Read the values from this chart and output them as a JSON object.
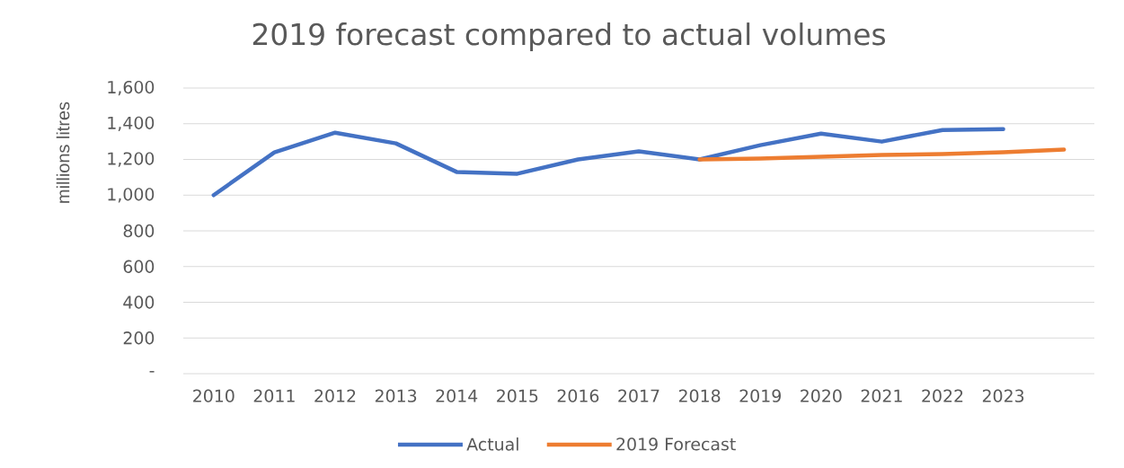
{
  "chart_data": {
    "type": "line",
    "title": "2019 forecast compared to actual volumes",
    "ylabel": "millions litres",
    "categories": [
      "2010",
      "2011",
      "2012",
      "2013",
      "2014",
      "2015",
      "2016",
      "2017",
      "2018",
      "2019",
      "2020",
      "2021",
      "2022",
      "2023",
      null
    ],
    "series": [
      {
        "name": "Actual",
        "color": "#4472c4",
        "values": [
          1000,
          1240,
          1350,
          1290,
          1130,
          1120,
          1200,
          1245,
          1200,
          1280,
          1345,
          1300,
          1365,
          1370,
          null
        ]
      },
      {
        "name": "2019 Forecast",
        "color": "#ed7d31",
        "values": [
          null,
          null,
          null,
          null,
          null,
          null,
          null,
          null,
          1200,
          1205,
          1215,
          1225,
          1230,
          1240,
          1255
        ]
      }
    ],
    "ylim": [
      0,
      1600
    ],
    "yticks": [
      {
        "value": 0,
        "label": "-"
      },
      200,
      400,
      600,
      800,
      {
        "value": 1000,
        "label": "1,000"
      },
      {
        "value": 1200,
        "label": "1,200"
      },
      {
        "value": 1400,
        "label": "1,400"
      },
      {
        "value": 1600,
        "label": "1,600"
      }
    ],
    "grid": "y",
    "legend": "bottom",
    "line_style": "solid"
  }
}
